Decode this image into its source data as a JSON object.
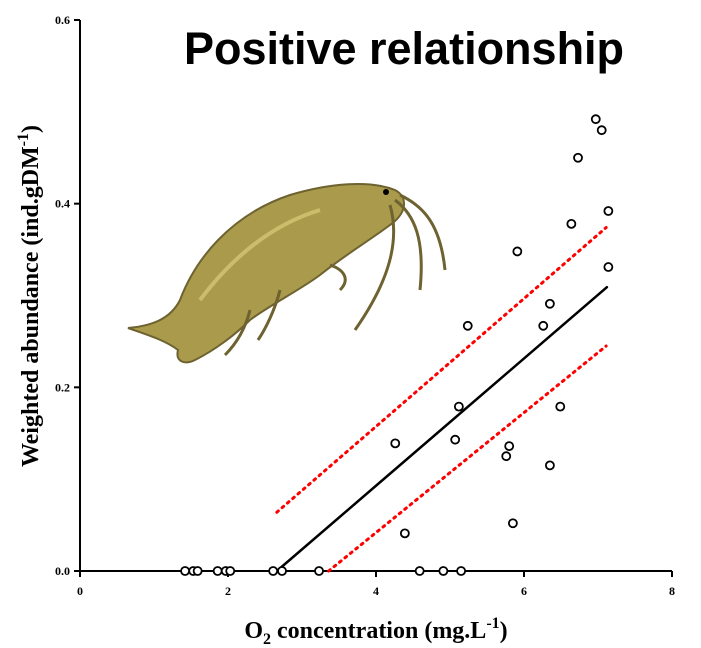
{
  "chart_data": {
    "type": "scatter",
    "title": "Positive relationship",
    "xlabel": [
      "O",
      "2",
      " concentration (mg.L",
      "-1",
      ")"
    ],
    "ylabel": [
      "Weighted abundance (ind.gDM",
      "-1",
      ")"
    ],
    "xlim": [
      0,
      8
    ],
    "ylim": [
      0,
      0.6
    ],
    "xticks": [
      0,
      2,
      4,
      6,
      8
    ],
    "yticks": [
      {
        "value": 0,
        "label": "0.0"
      },
      0.2,
      0.4,
      0.6
    ],
    "color": "#000000",
    "x": [
      1.42,
      1.53,
      1.59,
      1.86,
      1.97,
      2.03,
      2.61,
      2.73,
      3.23,
      4.59,
      4.91,
      5.15,
      4.26,
      4.39,
      5.07,
      5.12,
      5.24,
      5.91,
      5.76,
      5.8,
      5.85,
      6.26,
      6.35,
      6.35,
      6.49,
      6.64,
      6.73,
      6.97,
      7.05,
      7.14,
      7.14
    ],
    "y": [
      0,
      0,
      0,
      0,
      0,
      0,
      0,
      0,
      0,
      0,
      0,
      0,
      0.139,
      0.041,
      0.143,
      0.179,
      0.267,
      0.348,
      0.125,
      0.136,
      0.052,
      0.267,
      0.291,
      0.115,
      0.179,
      0.378,
      0.45,
      0.492,
      0.48,
      0.392,
      0.331
    ],
    "lines": [
      {
        "x": [
          2.66,
          7.12
        ],
        "y": [
          0,
          0.309
        ],
        "color": "#000000",
        "style": "solid"
      },
      {
        "x": [
          2.66,
          7.11
        ],
        "y": [
          0.064,
          0.374
        ],
        "color": "#ff0000",
        "style": "dotted"
      },
      {
        "x": [
          3.36,
          7.11
        ],
        "y": [
          0,
          0.245
        ],
        "color": "#ff0000",
        "style": "dotted"
      }
    ]
  }
}
